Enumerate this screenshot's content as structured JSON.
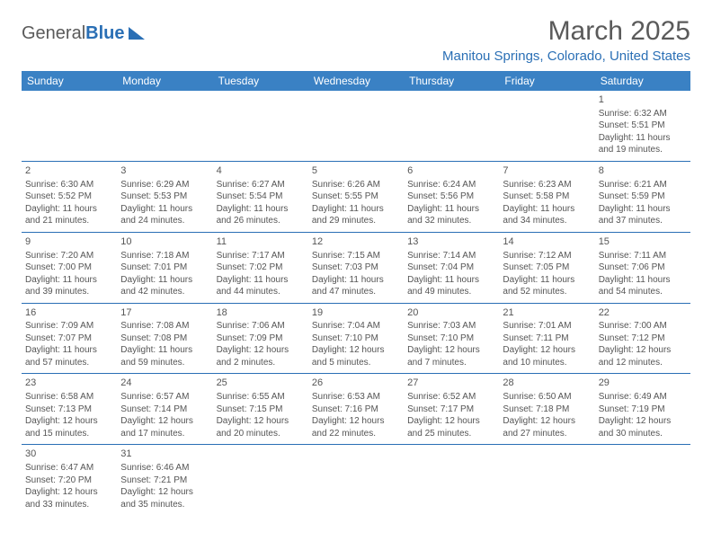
{
  "logo": {
    "text_general": "General",
    "text_blue": "Blue"
  },
  "title": "March 2025",
  "location": "Manitou Springs, Colorado, United States",
  "colors": {
    "header_bg": "#3a81c4",
    "accent": "#2a6fb5",
    "text": "#555555",
    "background": "#ffffff"
  },
  "weekdays": [
    "Sunday",
    "Monday",
    "Tuesday",
    "Wednesday",
    "Thursday",
    "Friday",
    "Saturday"
  ],
  "weeks": [
    [
      null,
      null,
      null,
      null,
      null,
      null,
      {
        "d": "1",
        "sr": "Sunrise: 6:32 AM",
        "ss": "Sunset: 5:51 PM",
        "dl": "Daylight: 11 hours and 19 minutes."
      }
    ],
    [
      {
        "d": "2",
        "sr": "Sunrise: 6:30 AM",
        "ss": "Sunset: 5:52 PM",
        "dl": "Daylight: 11 hours and 21 minutes."
      },
      {
        "d": "3",
        "sr": "Sunrise: 6:29 AM",
        "ss": "Sunset: 5:53 PM",
        "dl": "Daylight: 11 hours and 24 minutes."
      },
      {
        "d": "4",
        "sr": "Sunrise: 6:27 AM",
        "ss": "Sunset: 5:54 PM",
        "dl": "Daylight: 11 hours and 26 minutes."
      },
      {
        "d": "5",
        "sr": "Sunrise: 6:26 AM",
        "ss": "Sunset: 5:55 PM",
        "dl": "Daylight: 11 hours and 29 minutes."
      },
      {
        "d": "6",
        "sr": "Sunrise: 6:24 AM",
        "ss": "Sunset: 5:56 PM",
        "dl": "Daylight: 11 hours and 32 minutes."
      },
      {
        "d": "7",
        "sr": "Sunrise: 6:23 AM",
        "ss": "Sunset: 5:58 PM",
        "dl": "Daylight: 11 hours and 34 minutes."
      },
      {
        "d": "8",
        "sr": "Sunrise: 6:21 AM",
        "ss": "Sunset: 5:59 PM",
        "dl": "Daylight: 11 hours and 37 minutes."
      }
    ],
    [
      {
        "d": "9",
        "sr": "Sunrise: 7:20 AM",
        "ss": "Sunset: 7:00 PM",
        "dl": "Daylight: 11 hours and 39 minutes."
      },
      {
        "d": "10",
        "sr": "Sunrise: 7:18 AM",
        "ss": "Sunset: 7:01 PM",
        "dl": "Daylight: 11 hours and 42 minutes."
      },
      {
        "d": "11",
        "sr": "Sunrise: 7:17 AM",
        "ss": "Sunset: 7:02 PM",
        "dl": "Daylight: 11 hours and 44 minutes."
      },
      {
        "d": "12",
        "sr": "Sunrise: 7:15 AM",
        "ss": "Sunset: 7:03 PM",
        "dl": "Daylight: 11 hours and 47 minutes."
      },
      {
        "d": "13",
        "sr": "Sunrise: 7:14 AM",
        "ss": "Sunset: 7:04 PM",
        "dl": "Daylight: 11 hours and 49 minutes."
      },
      {
        "d": "14",
        "sr": "Sunrise: 7:12 AM",
        "ss": "Sunset: 7:05 PM",
        "dl": "Daylight: 11 hours and 52 minutes."
      },
      {
        "d": "15",
        "sr": "Sunrise: 7:11 AM",
        "ss": "Sunset: 7:06 PM",
        "dl": "Daylight: 11 hours and 54 minutes."
      }
    ],
    [
      {
        "d": "16",
        "sr": "Sunrise: 7:09 AM",
        "ss": "Sunset: 7:07 PM",
        "dl": "Daylight: 11 hours and 57 minutes."
      },
      {
        "d": "17",
        "sr": "Sunrise: 7:08 AM",
        "ss": "Sunset: 7:08 PM",
        "dl": "Daylight: 11 hours and 59 minutes."
      },
      {
        "d": "18",
        "sr": "Sunrise: 7:06 AM",
        "ss": "Sunset: 7:09 PM",
        "dl": "Daylight: 12 hours and 2 minutes."
      },
      {
        "d": "19",
        "sr": "Sunrise: 7:04 AM",
        "ss": "Sunset: 7:10 PM",
        "dl": "Daylight: 12 hours and 5 minutes."
      },
      {
        "d": "20",
        "sr": "Sunrise: 7:03 AM",
        "ss": "Sunset: 7:10 PM",
        "dl": "Daylight: 12 hours and 7 minutes."
      },
      {
        "d": "21",
        "sr": "Sunrise: 7:01 AM",
        "ss": "Sunset: 7:11 PM",
        "dl": "Daylight: 12 hours and 10 minutes."
      },
      {
        "d": "22",
        "sr": "Sunrise: 7:00 AM",
        "ss": "Sunset: 7:12 PM",
        "dl": "Daylight: 12 hours and 12 minutes."
      }
    ],
    [
      {
        "d": "23",
        "sr": "Sunrise: 6:58 AM",
        "ss": "Sunset: 7:13 PM",
        "dl": "Daylight: 12 hours and 15 minutes."
      },
      {
        "d": "24",
        "sr": "Sunrise: 6:57 AM",
        "ss": "Sunset: 7:14 PM",
        "dl": "Daylight: 12 hours and 17 minutes."
      },
      {
        "d": "25",
        "sr": "Sunrise: 6:55 AM",
        "ss": "Sunset: 7:15 PM",
        "dl": "Daylight: 12 hours and 20 minutes."
      },
      {
        "d": "26",
        "sr": "Sunrise: 6:53 AM",
        "ss": "Sunset: 7:16 PM",
        "dl": "Daylight: 12 hours and 22 minutes."
      },
      {
        "d": "27",
        "sr": "Sunrise: 6:52 AM",
        "ss": "Sunset: 7:17 PM",
        "dl": "Daylight: 12 hours and 25 minutes."
      },
      {
        "d": "28",
        "sr": "Sunrise: 6:50 AM",
        "ss": "Sunset: 7:18 PM",
        "dl": "Daylight: 12 hours and 27 minutes."
      },
      {
        "d": "29",
        "sr": "Sunrise: 6:49 AM",
        "ss": "Sunset: 7:19 PM",
        "dl": "Daylight: 12 hours and 30 minutes."
      }
    ],
    [
      {
        "d": "30",
        "sr": "Sunrise: 6:47 AM",
        "ss": "Sunset: 7:20 PM",
        "dl": "Daylight: 12 hours and 33 minutes."
      },
      {
        "d": "31",
        "sr": "Sunrise: 6:46 AM",
        "ss": "Sunset: 7:21 PM",
        "dl": "Daylight: 12 hours and 35 minutes."
      },
      null,
      null,
      null,
      null,
      null
    ]
  ]
}
